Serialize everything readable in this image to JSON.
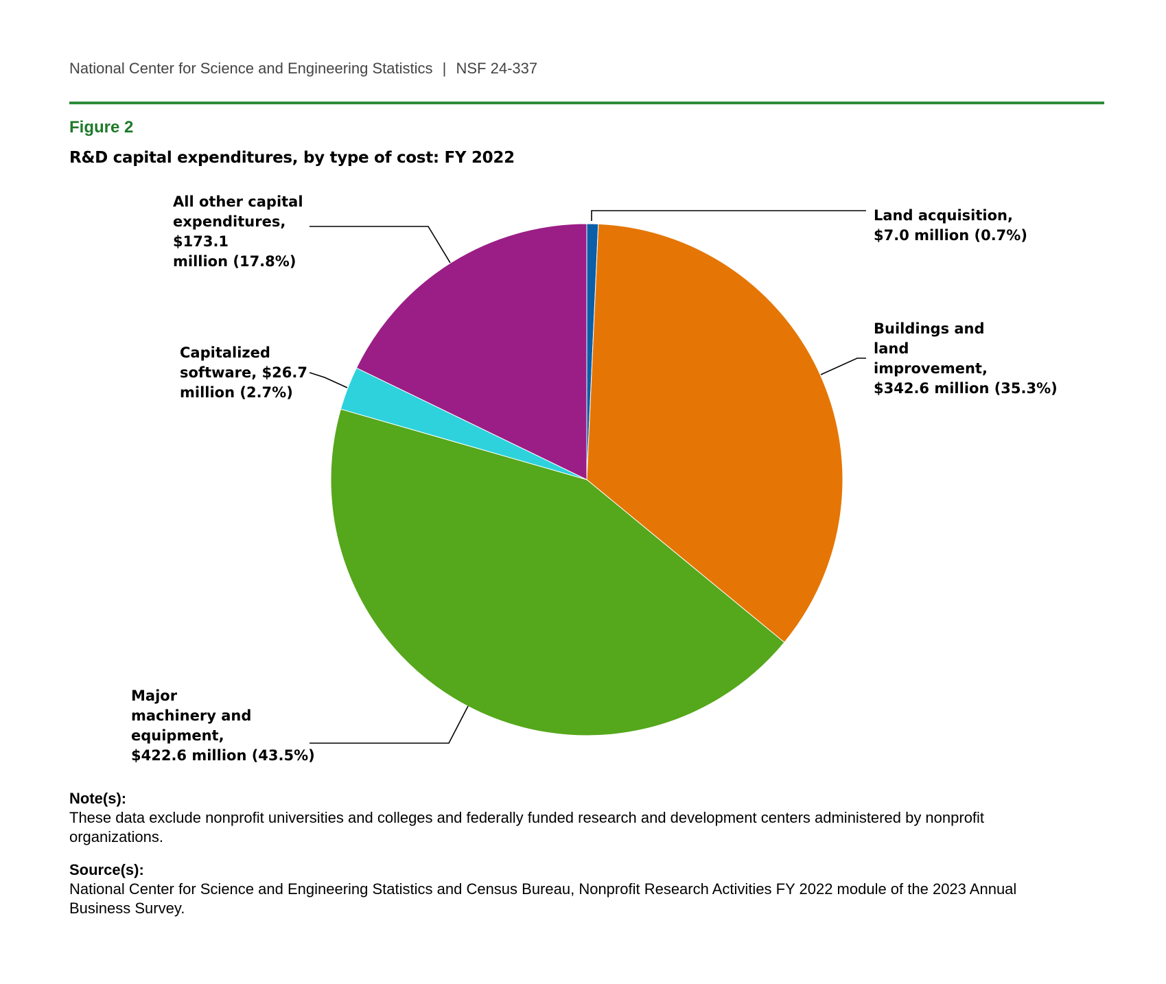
{
  "header": {
    "organization": "National Center for Science and Engineering Statistics",
    "separator": "|",
    "report_id": "NSF 24-337",
    "rule_color": "#2e8b3a"
  },
  "figure": {
    "label": "Figure 2",
    "title": "R&D capital expenditures, by type of cost: FY 2022"
  },
  "chart_data": {
    "type": "pie",
    "title": "R&D capital expenditures, by type of cost: FY 2022",
    "unit": "$ millions",
    "start": "12 o'clock",
    "direction": "clockwise",
    "slices": [
      {
        "name": "Land acquisition",
        "value": 7.0,
        "percent": 0.7,
        "color": "#0b5ea8",
        "label_lines": [
          "Land acquisition,",
          "$7.0 million (0.7%)"
        ]
      },
      {
        "name": "Buildings and land improvement",
        "value": 342.6,
        "percent": 35.3,
        "color": "#e57605",
        "label_lines": [
          "Buildings and",
          "land",
          "improvement,",
          "$342.6 million (35.3%)"
        ]
      },
      {
        "name": "Major machinery and equipment",
        "value": 422.6,
        "percent": 43.5,
        "color": "#55a71b",
        "label_lines": [
          "Major",
          "machinery and",
          "equipment,",
          "$422.6 million (43.5%)"
        ]
      },
      {
        "name": "Capitalized software",
        "value": 26.7,
        "percent": 2.7,
        "color": "#2dd2dc",
        "label_lines": [
          "Capitalized",
          "software, $26.7",
          "million (2.7%)"
        ]
      },
      {
        "name": "All other capital expenditures",
        "value": 173.1,
        "percent": 17.8,
        "color": "#9b1e86",
        "label_lines": [
          "All other capital",
          "expenditures,",
          "$173.1",
          "million (17.8%)"
        ]
      }
    ]
  },
  "notes": {
    "note_heading": "Note(s):",
    "note_text": "These data exclude nonprofit universities and colleges and federally funded research and development centers administered by nonprofit organizations.",
    "source_heading": "Source(s):",
    "source_text": "National Center for Science and Engineering Statistics and Census Bureau, Nonprofit Research Activities FY 2022 module of the 2023 Annual Business Survey."
  }
}
